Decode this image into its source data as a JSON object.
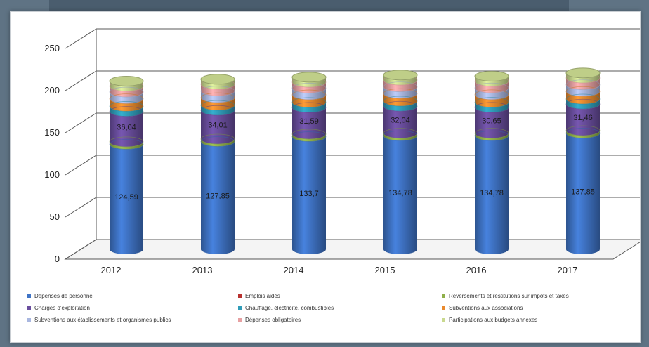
{
  "chart_data": {
    "type": "bar",
    "stacked": true,
    "style": "3d-cylinder",
    "categories": [
      "2012",
      "2013",
      "2014",
      "2015",
      "2016",
      "2017"
    ],
    "ylim": [
      0,
      250
    ],
    "yticks": [
      0,
      50,
      100,
      150,
      200,
      250
    ],
    "grid": true,
    "legend_position": "bottom",
    "series": [
      {
        "name": "Dépenses de personnel",
        "color": "#3f74c6",
        "values": [
          124.59,
          127.85,
          133.7,
          134.78,
          134.78,
          137.85
        ],
        "labels": [
          "124,59",
          "127,85",
          "133,7",
          "134,78",
          "134,78",
          "137,85"
        ]
      },
      {
        "name": "Emplois aidés",
        "color": "#b8312f",
        "values": [
          0,
          0,
          0,
          0,
          0,
          0
        ]
      },
      {
        "name": "Reversements et restitutions sur impôts et taxes",
        "color": "#8faf4a",
        "values": [
          3,
          3,
          3,
          3,
          3,
          3
        ]
      },
      {
        "name": "Charges d'exploitation",
        "color": "#6a4e9e",
        "values": [
          36.04,
          34.01,
          31.59,
          32.04,
          30.65,
          31.46
        ],
        "labels": [
          "36,04",
          "34,01",
          "31,59",
          "32,04",
          "30,65",
          "31,46"
        ]
      },
      {
        "name": "Chauffage, électricité, combustibles",
        "color": "#2f9cb8",
        "values": [
          6,
          6,
          6,
          6,
          6,
          6
        ]
      },
      {
        "name": "Subventions aux associations",
        "color": "#ea8a2e",
        "values": [
          9,
          9,
          9,
          9,
          9,
          9
        ]
      },
      {
        "name": "Subventions aux établissements et organismes publics",
        "color": "#a9b7e0",
        "values": [
          8,
          8,
          8,
          8,
          8,
          8
        ]
      },
      {
        "name": "Dépenses obligatoires",
        "color": "#e7a0a2",
        "values": [
          7,
          8,
          7,
          8,
          8,
          8
        ]
      },
      {
        "name": "Participations aux budgets annexes",
        "color": "#c9d98f",
        "values": [
          6,
          6,
          6,
          6,
          6,
          6
        ]
      }
    ]
  }
}
